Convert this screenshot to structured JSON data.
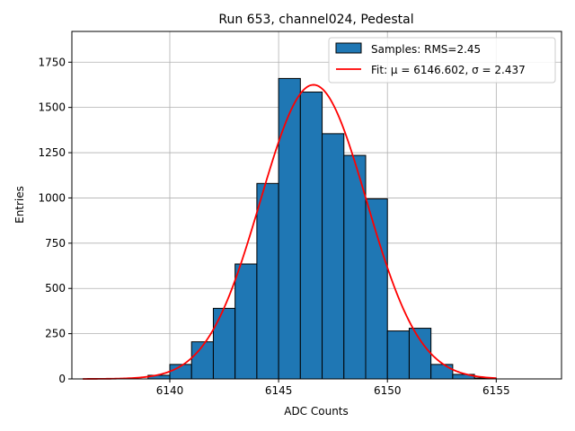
{
  "chart_data": {
    "type": "bar",
    "title": "Run 653, channel024, Pedestal",
    "xlabel": "ADC Counts",
    "ylabel": "Entries",
    "xlim": [
      6135.5,
      6158.0
    ],
    "ylim": [
      0,
      1920
    ],
    "xticks": [
      6140,
      6145,
      6150,
      6155
    ],
    "yticks": [
      0,
      250,
      500,
      750,
      1000,
      1250,
      1500,
      1750
    ],
    "grid": true,
    "legend_position": "top-right",
    "bar_color": "#1f77b4",
    "fit_color": "#ff0000",
    "bins": [
      {
        "left": 6139,
        "right": 6140,
        "count": 20
      },
      {
        "left": 6140,
        "right": 6141,
        "count": 80
      },
      {
        "left": 6141,
        "right": 6142,
        "count": 205
      },
      {
        "left": 6142,
        "right": 6143,
        "count": 390
      },
      {
        "left": 6143,
        "right": 6144,
        "count": 635
      },
      {
        "left": 6144,
        "right": 6145,
        "count": 1080
      },
      {
        "left": 6145,
        "right": 6146,
        "count": 1660
      },
      {
        "left": 6146,
        "right": 6147,
        "count": 1585
      },
      {
        "left": 6147,
        "right": 6148,
        "count": 1355
      },
      {
        "left": 6148,
        "right": 6149,
        "count": 1235
      },
      {
        "left": 6149,
        "right": 6150,
        "count": 995
      },
      {
        "left": 6150,
        "right": 6151,
        "count": 265
      },
      {
        "left": 6151,
        "right": 6152,
        "count": 280
      },
      {
        "left": 6152,
        "right": 6153,
        "count": 80
      },
      {
        "left": 6153,
        "right": 6154,
        "count": 25
      },
      {
        "left": 6154,
        "right": 6155,
        "count": 5
      }
    ],
    "fit": {
      "mu": 6146.602,
      "sigma": 2.437,
      "amplitude": 1625,
      "x_range": [
        6136,
        6155
      ]
    },
    "legend": [
      {
        "name": "Samples: RMS=2.45",
        "kind": "bar"
      },
      {
        "name": "Fit: μ = 6146.602, σ = 2.437",
        "kind": "line"
      }
    ]
  }
}
